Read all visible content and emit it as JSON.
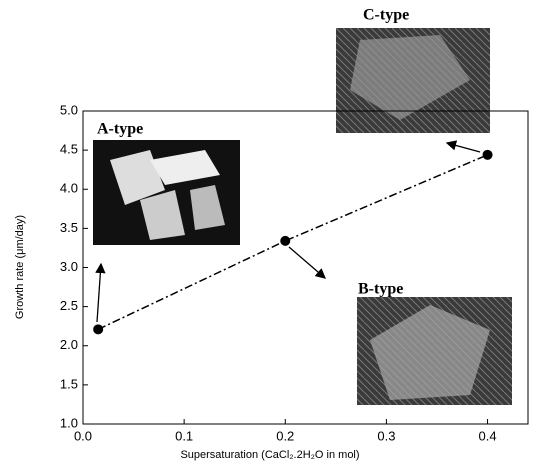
{
  "chart_data": {
    "type": "line",
    "x_label": "Supersaturation (CaCl₂.2H₂O in mol)",
    "y_label": "Growth rate (μm/day)",
    "x": [
      0.015,
      0.2,
      0.4
    ],
    "values": [
      2.21,
      3.34,
      4.44
    ],
    "color": "#000000",
    "xlim": [
      0,
      0.44
    ],
    "ylim": [
      1,
      5
    ],
    "xticks": [
      {
        "value": 0,
        "label": "0.0"
      },
      0.1,
      0.2,
      0.3,
      0.4
    ],
    "yticks": [
      {
        "value": 1,
        "label": "1.0"
      },
      1.5,
      {
        "value": 2,
        "label": "2.0"
      },
      2.5,
      {
        "value": 3,
        "label": "3.0"
      },
      3.5,
      {
        "value": 4,
        "label": "4.0"
      },
      4.5,
      {
        "value": 5,
        "label": "5.0"
      }
    ],
    "annotations": [
      "A-type",
      "B-type",
      "C-type"
    ]
  }
}
